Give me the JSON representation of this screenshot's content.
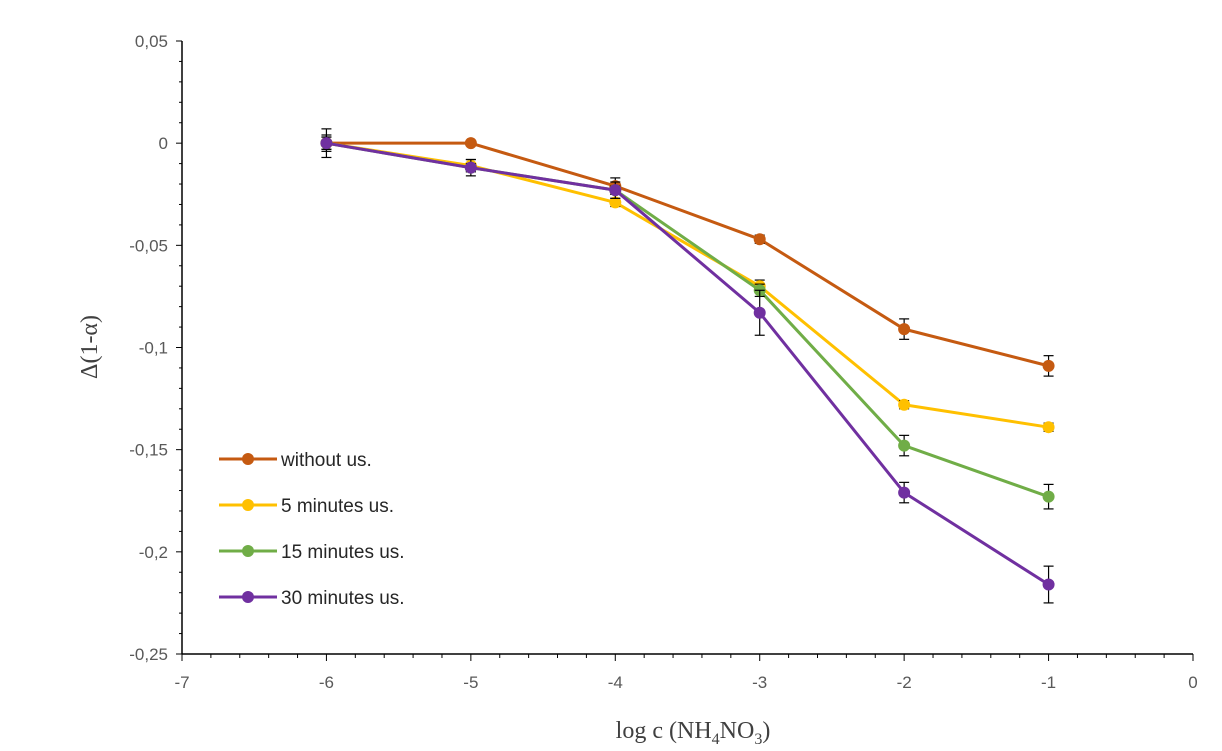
{
  "chart_data": {
    "type": "line",
    "title": "",
    "xlabel": "log c (NH4NO3)",
    "xlabel_parts": {
      "pre": "log c (NH",
      "sub1": "4",
      "mid": "NO",
      "sub2": "3",
      "post": ")"
    },
    "ylabel": "Δ(1-α)",
    "xlim": [
      -7,
      0
    ],
    "ylim": [
      -0.25,
      0.05
    ],
    "x_ticks": [
      -7,
      -6,
      -5,
      -4,
      -3,
      -2,
      -1,
      0
    ],
    "x_tick_labels": [
      "-7",
      "-6",
      "-5",
      "-4",
      "-3",
      "-2",
      "-1",
      "0"
    ],
    "y_ticks": [
      0.05,
      0,
      -0.05,
      -0.1,
      -0.15,
      -0.2,
      -0.25
    ],
    "y_tick_labels": [
      "0,05",
      "0",
      "-0,05",
      "-0,1",
      "-0,15",
      "-0,2",
      "-0,25"
    ],
    "grid": false,
    "legend_position": "bottom-left",
    "x": [
      -6,
      -5,
      -4,
      -3,
      -2,
      -1
    ],
    "series": [
      {
        "name": "without us.",
        "color": "#C55A11",
        "values": [
          0,
          0,
          -0.021,
          -0.047,
          -0.091,
          -0.109
        ],
        "errors": [
          0.007,
          0.001,
          0.004,
          0.002,
          0.005,
          0.005
        ]
      },
      {
        "name": "5 minutes us.",
        "color": "#FFC000",
        "values": [
          0,
          -0.011,
          -0.029,
          -0.07,
          -0.128,
          -0.139
        ],
        "errors": [
          0.004,
          0.003,
          0.002,
          0.003,
          0.002,
          0.002
        ]
      },
      {
        "name": "15 minutes us.",
        "color": "#70AD47",
        "values": [
          0,
          -0.012,
          -0.023,
          -0.072,
          -0.148,
          -0.173
        ],
        "errors": [
          0.003,
          0.002,
          0.002,
          0.003,
          0.005,
          0.006
        ]
      },
      {
        "name": "30 minutes us.",
        "color": "#7030A0",
        "values": [
          0,
          -0.012,
          -0.023,
          -0.083,
          -0.171,
          -0.216
        ],
        "errors": [
          0.003,
          0.004,
          0.004,
          0.011,
          0.005,
          0.009
        ]
      }
    ]
  }
}
